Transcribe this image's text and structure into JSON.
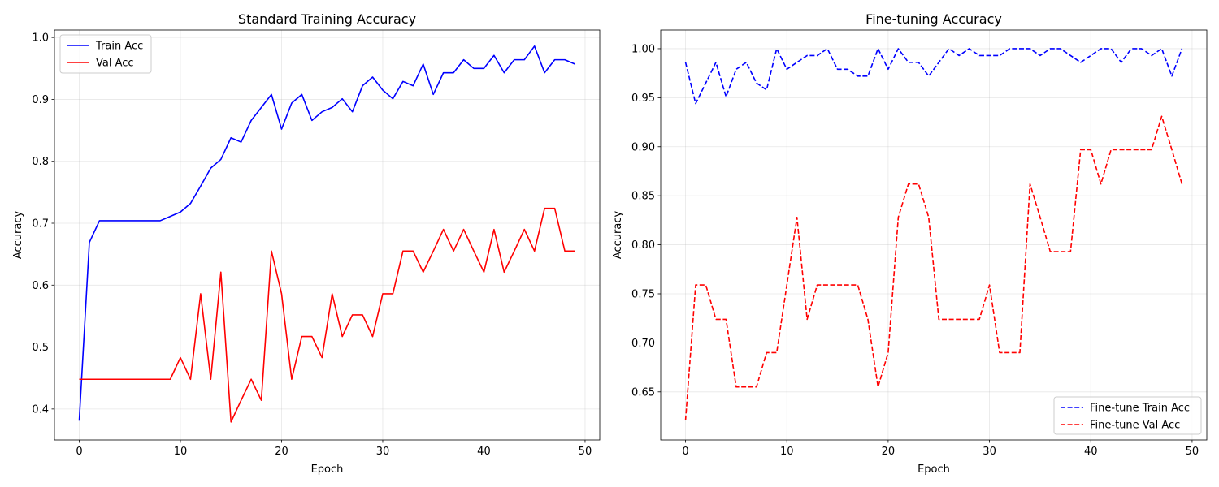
{
  "chart_data": [
    {
      "type": "line",
      "title": "Standard Training Accuracy",
      "xlabel": "Epoch",
      "ylabel": "Accuracy",
      "xlim": [
        -2.45,
        51.45
      ],
      "ylim": [
        0.35,
        1.012
      ],
      "xticks": [
        0,
        10,
        20,
        30,
        40,
        50
      ],
      "xtick_labels": [
        "0",
        "10",
        "20",
        "30",
        "40",
        "50"
      ],
      "yticks": [
        0.4,
        0.5,
        0.6,
        0.7,
        0.8,
        0.9,
        1.0
      ],
      "ytick_labels": [
        "0.4",
        "0.5",
        "0.6",
        "0.7",
        "0.8",
        "0.9",
        "1.0"
      ],
      "grid": true,
      "legend": "upper-left",
      "x": [
        0,
        1,
        2,
        3,
        4,
        5,
        6,
        7,
        8,
        9,
        10,
        11,
        12,
        13,
        14,
        15,
        16,
        17,
        18,
        19,
        20,
        21,
        22,
        23,
        24,
        25,
        26,
        27,
        28,
        29,
        30,
        31,
        32,
        33,
        34,
        35,
        36,
        37,
        38,
        39,
        40,
        41,
        42,
        43,
        44,
        45,
        46,
        47,
        48,
        49
      ],
      "series": [
        {
          "name": "Train Acc",
          "color": "#0000ff",
          "dash": "solid",
          "values": [
            0.381,
            0.669,
            0.704,
            0.704,
            0.704,
            0.704,
            0.704,
            0.704,
            0.704,
            0.711,
            0.718,
            0.732,
            0.76,
            0.789,
            0.803,
            0.838,
            0.831,
            0.866,
            0.887,
            0.908,
            0.852,
            0.894,
            0.908,
            0.866,
            0.88,
            0.887,
            0.901,
            0.88,
            0.922,
            0.936,
            0.915,
            0.901,
            0.929,
            0.922,
            0.957,
            0.908,
            0.943,
            0.943,
            0.964,
            0.95,
            0.95,
            0.971,
            0.943,
            0.964,
            0.964,
            0.986,
            0.943,
            0.964,
            0.964,
            0.957
          ]
        },
        {
          "name": "Val Acc",
          "color": "#ff0000",
          "dash": "solid",
          "values": [
            0.448,
            0.448,
            0.448,
            0.448,
            0.448,
            0.448,
            0.448,
            0.448,
            0.448,
            0.448,
            0.483,
            0.448,
            0.586,
            0.448,
            0.621,
            0.379,
            0.414,
            0.448,
            0.414,
            0.655,
            0.586,
            0.448,
            0.517,
            0.517,
            0.483,
            0.586,
            0.517,
            0.552,
            0.552,
            0.517,
            0.586,
            0.586,
            0.655,
            0.655,
            0.621,
            0.655,
            0.69,
            0.655,
            0.69,
            0.655,
            0.621,
            0.69,
            0.621,
            0.655,
            0.69,
            0.655,
            0.724,
            0.724,
            0.655,
            0.655
          ]
        }
      ]
    },
    {
      "type": "line",
      "title": "Fine-tuning Accuracy",
      "xlabel": "Epoch",
      "ylabel": "Accuracy",
      "xlim": [
        -2.45,
        51.45
      ],
      "ylim": [
        0.601,
        1.019
      ],
      "xticks": [
        0,
        10,
        20,
        30,
        40,
        50
      ],
      "xtick_labels": [
        "0",
        "10",
        "20",
        "30",
        "40",
        "50"
      ],
      "yticks": [
        0.65,
        0.7,
        0.75,
        0.8,
        0.85,
        0.9,
        0.95,
        1.0
      ],
      "ytick_labels": [
        "0.65",
        "0.70",
        "0.75",
        "0.80",
        "0.85",
        "0.90",
        "0.95",
        "1.00"
      ],
      "grid": true,
      "legend": "lower-right",
      "x": [
        0,
        1,
        2,
        3,
        4,
        5,
        6,
        7,
        8,
        9,
        10,
        11,
        12,
        13,
        14,
        15,
        16,
        17,
        18,
        19,
        20,
        21,
        22,
        23,
        24,
        25,
        26,
        27,
        28,
        29,
        30,
        31,
        32,
        33,
        34,
        35,
        36,
        37,
        38,
        39,
        40,
        41,
        42,
        43,
        44,
        45,
        46,
        47,
        48,
        49
      ],
      "series": [
        {
          "name": "Fine-tune Train Acc",
          "color": "#0000ff",
          "dash": "dashed",
          "values": [
            0.986,
            0.944,
            0.965,
            0.986,
            0.951,
            0.979,
            0.986,
            0.965,
            0.958,
            1.0,
            0.979,
            0.986,
            0.993,
            0.993,
            1.0,
            0.979,
            0.979,
            0.972,
            0.972,
            1.0,
            0.979,
            1.0,
            0.986,
            0.986,
            0.972,
            0.986,
            1.0,
            0.993,
            1.0,
            0.993,
            0.993,
            0.993,
            1.0,
            1.0,
            1.0,
            0.993,
            1.0,
            1.0,
            0.993,
            0.986,
            0.993,
            1.0,
            1.0,
            0.986,
            1.0,
            1.0,
            0.993,
            1.0,
            0.972,
            1.0
          ]
        },
        {
          "name": "Fine-tune Val Acc",
          "color": "#ff0000",
          "dash": "dashed",
          "values": [
            0.621,
            0.759,
            0.759,
            0.724,
            0.724,
            0.655,
            0.655,
            0.655,
            0.69,
            0.69,
            0.759,
            0.828,
            0.724,
            0.759,
            0.759,
            0.759,
            0.759,
            0.759,
            0.724,
            0.655,
            0.69,
            0.828,
            0.862,
            0.862,
            0.828,
            0.724,
            0.724,
            0.724,
            0.724,
            0.724,
            0.759,
            0.69,
            0.69,
            0.69,
            0.862,
            0.828,
            0.793,
            0.793,
            0.793,
            0.897,
            0.897,
            0.862,
            0.897,
            0.897,
            0.897,
            0.897,
            0.897,
            0.931,
            0.897,
            0.862
          ]
        }
      ]
    }
  ]
}
